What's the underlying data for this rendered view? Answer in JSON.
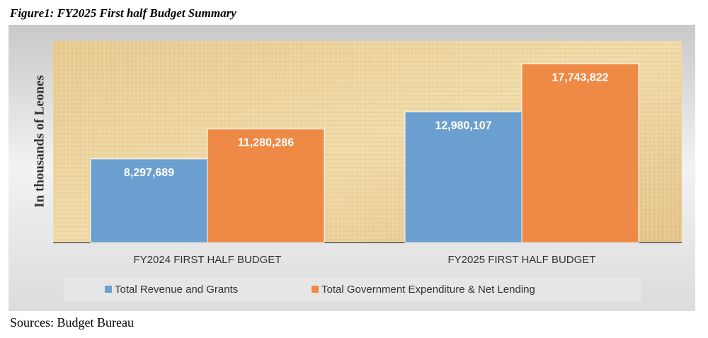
{
  "chart_data": {
    "type": "bar",
    "title": "Figure1: FY2025 First half Budget Summary",
    "y_label": "In thousands of Leones",
    "source": "Sources: Budget Bureau",
    "categories": [
      "FY2024 FIRST HALF BUDGET",
      "FY2025 FIRST HALF BUDGET"
    ],
    "series": [
      {
        "name": "Total Revenue and Grants",
        "color": "#6a9fd0",
        "values": [
          8297689,
          12980107
        ],
        "value_labels": [
          "8,297,689",
          "12,980,107"
        ]
      },
      {
        "name": "Total Government Expenditure & Net Lending",
        "color": "#ee8a45",
        "values": [
          11280286,
          17743822
        ],
        "value_labels": [
          "11,280,286",
          "17,743,822"
        ]
      }
    ],
    "ylim": [
      0,
      20000000
    ],
    "legend": "bottom"
  }
}
